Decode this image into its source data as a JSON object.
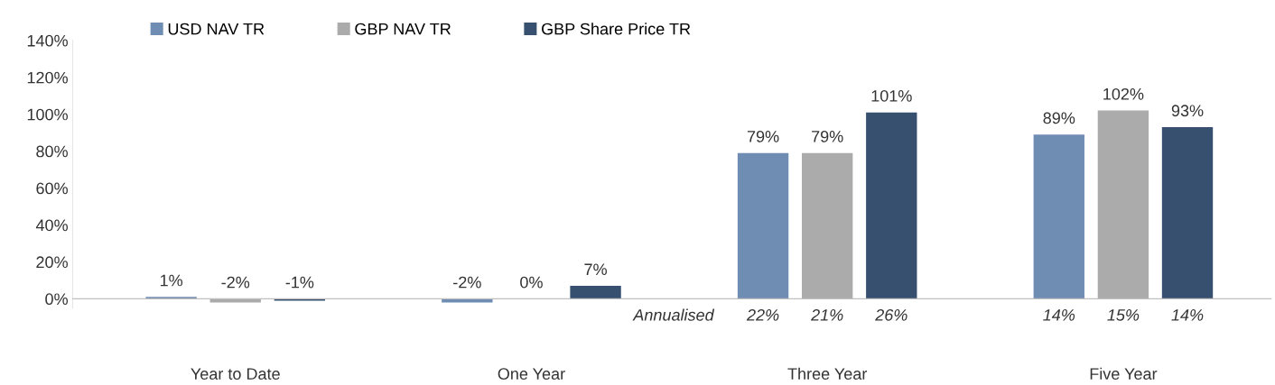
{
  "chart_data": {
    "type": "bar",
    "categories": [
      "Year to Date",
      "One Year",
      "Three Year",
      "Five Year"
    ],
    "series": [
      {
        "name": "USD NAV TR",
        "color": "#6f8db3",
        "values": [
          1,
          -2,
          79,
          89
        ],
        "value_labels": [
          "1%",
          "-2%",
          "79%",
          "89%"
        ]
      },
      {
        "name": "GBP NAV TR",
        "color": "#ababab",
        "values": [
          -2,
          0,
          79,
          102
        ],
        "value_labels": [
          "-2%",
          "0%",
          "79%",
          "102%"
        ]
      },
      {
        "name": "GBP Share Price TR",
        "color": "#37506f",
        "values": [
          -1,
          7,
          101,
          93
        ],
        "value_labels": [
          "-1%",
          "7%",
          "101%",
          "93%"
        ]
      }
    ],
    "ylim": [
      -5,
      140
    ],
    "yticks": [
      {
        "value": 0,
        "label": "0%"
      },
      {
        "value": 20,
        "label": "20%"
      },
      {
        "value": 40,
        "label": "40%"
      },
      {
        "value": 60,
        "label": "60%"
      },
      {
        "value": 80,
        "label": "80%"
      },
      {
        "value": 100,
        "label": "100%"
      },
      {
        "value": 120,
        "label": "120%"
      },
      {
        "value": 140,
        "label": "140%"
      }
    ],
    "annotations": [
      "Annualised",
      "22%",
      "21%",
      "26%",
      "14%",
      "15%",
      "14%"
    ],
    "legend": "top left"
  }
}
